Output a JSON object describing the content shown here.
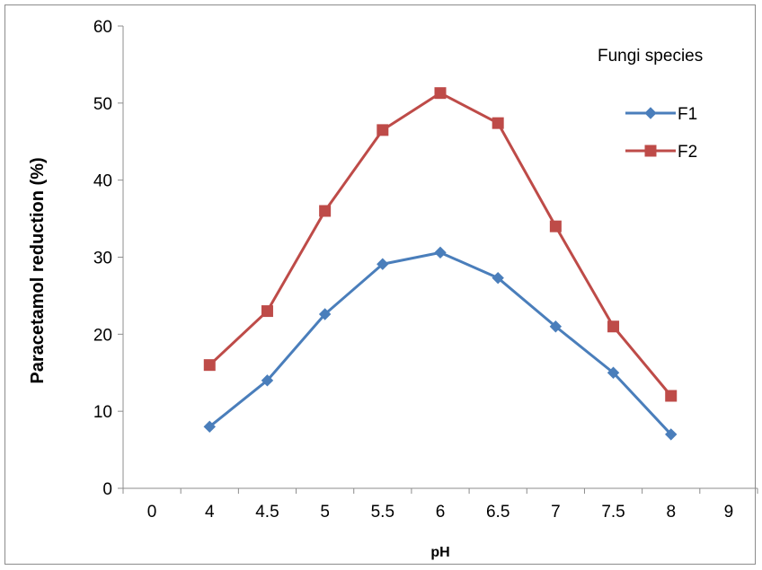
{
  "chart_data": {
    "type": "line",
    "title": "",
    "xlabel": "pH",
    "ylabel": "Paracetamol reduction (%)",
    "categories": [
      "0",
      "4",
      "4.5",
      "5",
      "5.5",
      "6",
      "6.5",
      "7",
      "7.5",
      "8",
      "9"
    ],
    "ylim": [
      0,
      60
    ],
    "yticks": [
      "0",
      "10",
      "20",
      "30",
      "40",
      "50",
      "60"
    ],
    "grid": false,
    "legend": {
      "title": "Fungi species",
      "position": "top-right"
    },
    "series": [
      {
        "name": "F1",
        "color": "#4a7ebb",
        "marker": "diamond",
        "values": [
          null,
          8,
          14,
          22.6,
          29.1,
          30.6,
          27.3,
          21,
          15,
          7,
          null
        ]
      },
      {
        "name": "F2",
        "color": "#be4b48",
        "marker": "square",
        "values": [
          null,
          16,
          23,
          36,
          46.5,
          51.3,
          47.4,
          34,
          21,
          12,
          null
        ]
      }
    ]
  }
}
